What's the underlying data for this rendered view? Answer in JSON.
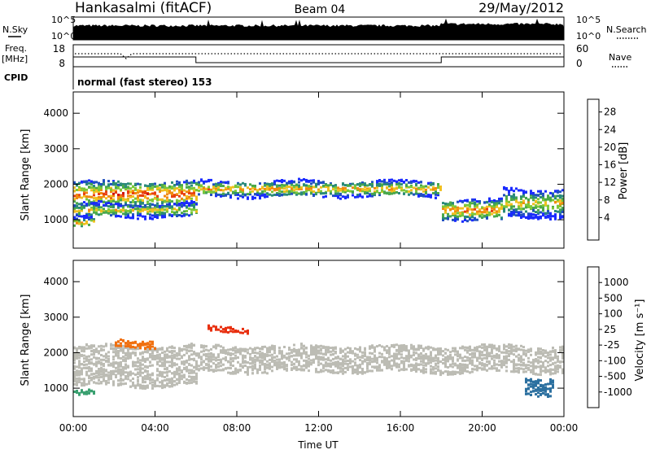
{
  "header": {
    "station": "Hankasalmi (fitACF)",
    "beam": "Beam 04",
    "date": "29/May/2012"
  },
  "strips": {
    "nsky_label": "N.Sky",
    "nsearch_label": "N.Search",
    "nsky_ticks": [
      "10^5",
      "10^0"
    ],
    "freq_label_1": "Freq.",
    "freq_label_2": "[MHz]",
    "freq_ticks": [
      "18",
      "8"
    ],
    "nave_label": "Nave",
    "nave_ticks": [
      "60",
      "0"
    ],
    "cpid_label": "CPID",
    "cpid_text": "normal (fast stereo) 153"
  },
  "chart_data": [
    {
      "type": "heatmap",
      "name": "power",
      "ylabel": "Slant Range [km]",
      "ylim": [
        200,
        4600
      ],
      "y_ticks": [
        1000,
        2000,
        3000,
        4000
      ],
      "xlabel": "Time UT",
      "x_ticks": [
        "00:00",
        "04:00",
        "08:00",
        "12:00",
        "16:00",
        "20:00",
        "00:00"
      ],
      "colorbar": {
        "label": "Power [dB]",
        "ticks": [
          "4",
          "8",
          "12",
          "16",
          "20",
          "24",
          "28"
        ],
        "colors": [
          "#1a2bff",
          "#2050c0",
          "#2a8a7a",
          "#4aa84a",
          "#7cc838",
          "#f0c020",
          "#f08a10",
          "#e84010",
          "#d01010"
        ]
      },
      "bands": [
        {
          "t0": 0,
          "t1": 6,
          "center": 1750,
          "width": 350,
          "level": 26
        },
        {
          "t0": 0,
          "t1": 6,
          "center": 1300,
          "width": 200,
          "level": 20
        },
        {
          "t0": 0,
          "t1": 1,
          "center": 950,
          "width": 120,
          "level": 24
        },
        {
          "t0": 6,
          "t1": 18,
          "center": 1900,
          "width": 220,
          "level": 22
        },
        {
          "t0": 18,
          "t1": 21,
          "center": 1300,
          "width": 300,
          "level": 24
        },
        {
          "t0": 21,
          "t1": 24,
          "center": 1500,
          "width": 400,
          "level": 20
        }
      ]
    },
    {
      "type": "heatmap",
      "name": "velocity",
      "ylabel": "Slant Range [km]",
      "ylim": [
        200,
        4600
      ],
      "y_ticks": [
        1000,
        2000,
        3000,
        4000
      ],
      "xlabel": "Time UT",
      "x_ticks": [
        "00:00",
        "04:00",
        "08:00",
        "12:00",
        "16:00",
        "20:00",
        "00:00"
      ],
      "colorbar": {
        "label": "Velocity [m s⁻¹]",
        "ticks": [
          "1000",
          "500",
          "100",
          "25",
          "-25",
          "-100",
          "-500",
          "-1000"
        ],
        "colors": [
          "#2a40b8",
          "#2c70a0",
          "#3aa070",
          "#70c040",
          "#bcbcb4",
          "#f0a010",
          "#f07010",
          "#e83010",
          "#e01010"
        ]
      },
      "bands": [
        {
          "t0": 0,
          "t1": 24,
          "center": 1850,
          "width": 380,
          "level": 0
        },
        {
          "t0": 0,
          "t1": 6,
          "center": 1300,
          "width": 220,
          "level": 0
        },
        {
          "t0": 6.5,
          "t1": 8.5,
          "center": 2700,
          "width": 80,
          "level": -500
        },
        {
          "t0": 2,
          "t1": 4,
          "center": 2300,
          "width": 100,
          "level": -100
        },
        {
          "t0": 0,
          "t1": 1,
          "center": 900,
          "width": 80,
          "level": 100
        },
        {
          "t0": 22,
          "t1": 23.5,
          "center": 1100,
          "width": 250,
          "level": 500
        }
      ]
    }
  ]
}
